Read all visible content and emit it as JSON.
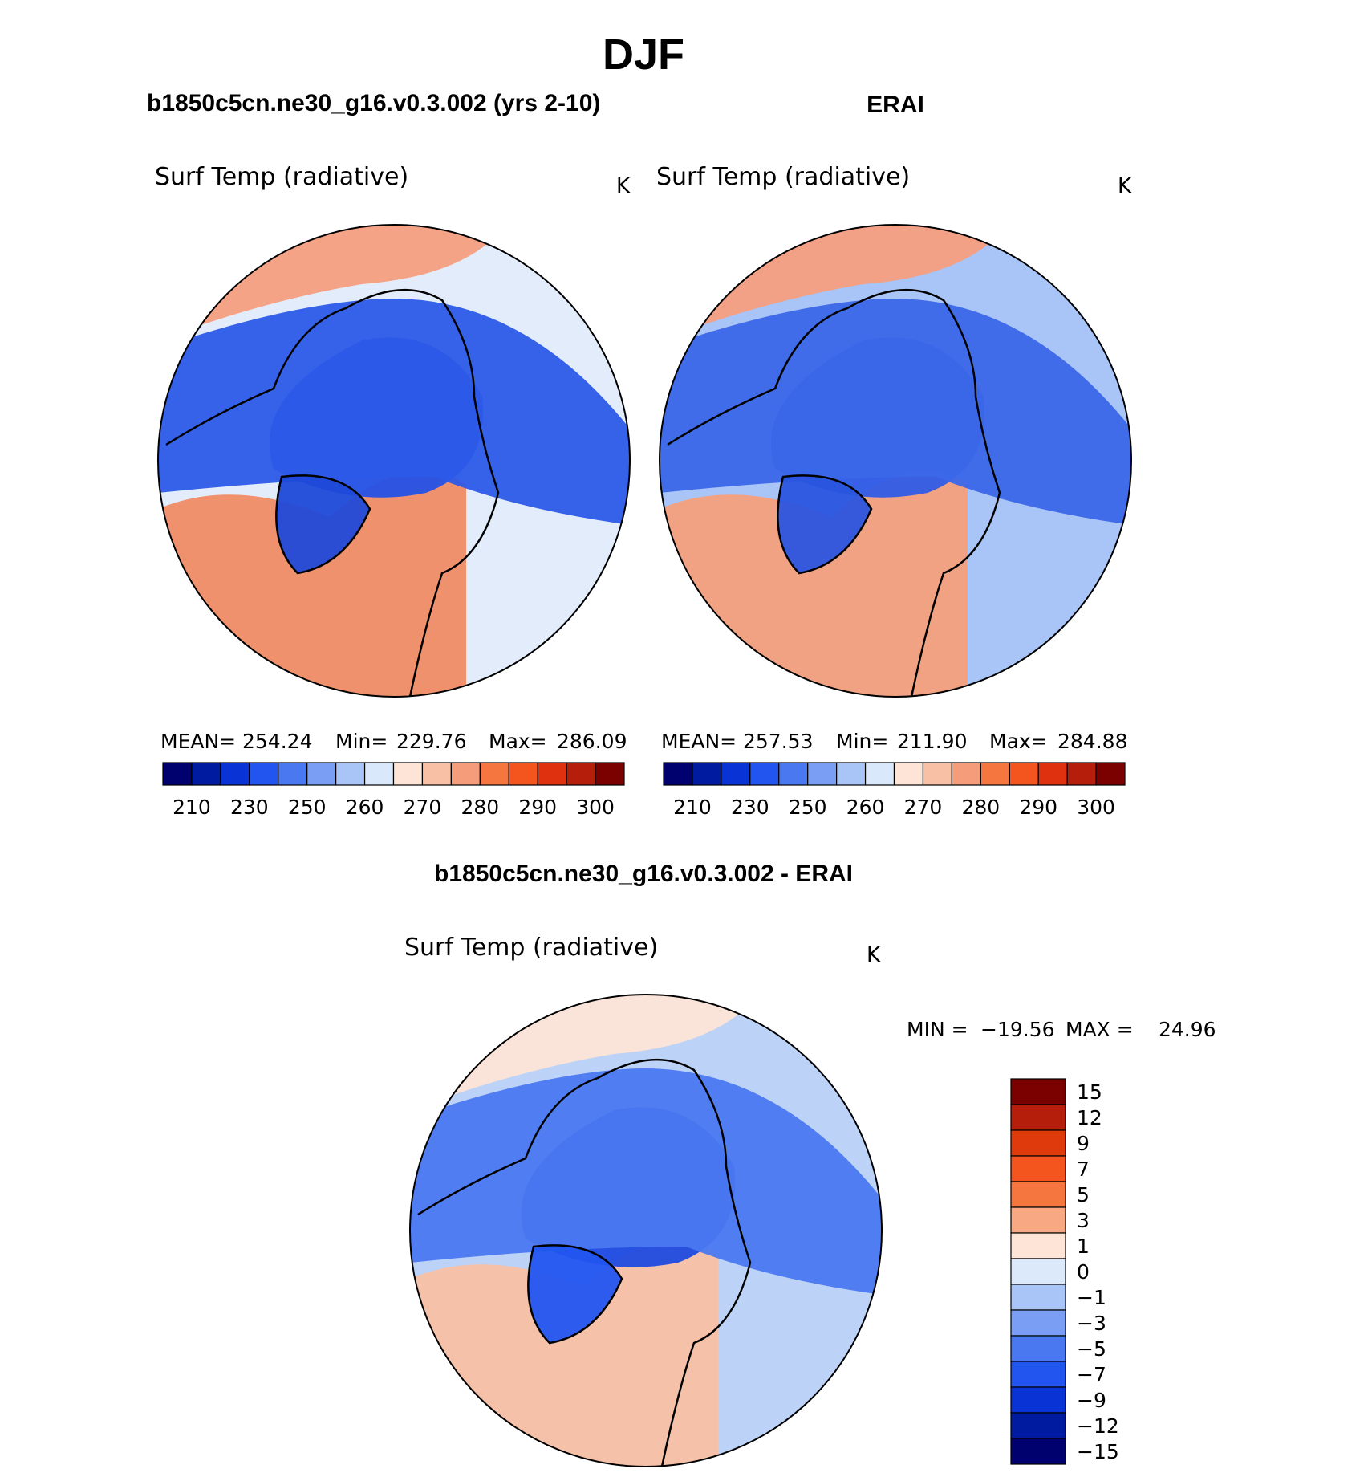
{
  "figure": {
    "season_title": "DJF"
  },
  "chart_data": [
    {
      "type": "heatmap",
      "projection": "north-polar-stereographic",
      "panel_title": "b1850c5cn.ne30_g16.v0.3.002 (yrs 2-10)",
      "variable": "Surf Temp (radiative)",
      "units": "K",
      "stats": {
        "mean_label": "MEAN=",
        "mean": "254.24",
        "min_label": "Min=",
        "min": "229.76",
        "max_label": "Max=",
        "max": "286.09"
      },
      "colorbar": {
        "orientation": "horizontal",
        "tick_labels": [
          "210",
          "230",
          "250",
          "260",
          "270",
          "280",
          "290",
          "300"
        ],
        "colors": [
          "#00006e",
          "#001aa0",
          "#0a33d6",
          "#2255f0",
          "#4a78f0",
          "#7a9ef3",
          "#a9c4f6",
          "#d9e8fb",
          "#fde4d6",
          "#f8c0a4",
          "#f59c7a",
          "#f5773f",
          "#f4541e",
          "#df3010",
          "#b51e0a",
          "#7b0000"
        ]
      },
      "map": {
        "land_color": "#e3ecfa",
        "regions": [
          {
            "name": "warm-atlantic",
            "value": "warm",
            "color": "#f08c66"
          },
          {
            "name": "warm-pacific",
            "value": "warm",
            "color": "#f59f80"
          },
          {
            "name": "cold-arctic",
            "value": "cold",
            "color": "#2451e6"
          },
          {
            "name": "cold-siberia",
            "value": "cold",
            "color": "#2c5ae8"
          },
          {
            "name": "cold-greenland",
            "value": "cold",
            "color": "#1f4ad8"
          }
        ]
      }
    },
    {
      "type": "heatmap",
      "projection": "north-polar-stereographic",
      "panel_title": "ERAI",
      "variable": "Surf Temp (radiative)",
      "units": "K",
      "stats": {
        "mean_label": "MEAN=",
        "mean": "257.53",
        "min_label": "Min=",
        "min": "211.90",
        "max_label": "Max=",
        "max": "284.88"
      },
      "colorbar": {
        "orientation": "horizontal",
        "tick_labels": [
          "210",
          "230",
          "250",
          "260",
          "270",
          "280",
          "290",
          "300"
        ],
        "colors": [
          "#00006e",
          "#001aa0",
          "#0a33d6",
          "#2255f0",
          "#4a78f0",
          "#7a9ef3",
          "#a9c4f6",
          "#d9e8fb",
          "#fde4d6",
          "#f8c0a4",
          "#f59c7a",
          "#f5773f",
          "#f4541e",
          "#df3010",
          "#b51e0a",
          "#7b0000"
        ]
      },
      "map": {
        "land_color": "#a9c4f6",
        "regions": [
          {
            "name": "warm-atlantic",
            "value": "warm",
            "color": "#f4a07c"
          },
          {
            "name": "warm-pacific",
            "value": "warm",
            "color": "#f59f80"
          },
          {
            "name": "cold-arctic",
            "value": "cold",
            "color": "#2f5ce6"
          },
          {
            "name": "cold-siberia",
            "value": "cold",
            "color": "#3b67e8"
          },
          {
            "name": "cold-greenland",
            "value": "cold",
            "color": "#2a55de"
          }
        ]
      }
    },
    {
      "type": "heatmap",
      "projection": "north-polar-stereographic",
      "panel_title": "b1850c5cn.ne30_g16.v0.3.002 - ERAI",
      "variable": "Surf Temp (radiative)",
      "units": "K",
      "stats": {
        "min_label": "MIN =",
        "min": "−19.56",
        "max_label": "MAX =",
        "max": "24.96"
      },
      "colorbar": {
        "orientation": "vertical",
        "tick_labels": [
          "15",
          "12",
          "9",
          "7",
          "5",
          "3",
          "1",
          "0",
          "−1",
          "−3",
          "−5",
          "−7",
          "−9",
          "−12",
          "−15"
        ],
        "colors": [
          "#7b0000",
          "#b51e0a",
          "#df3a0c",
          "#f4541e",
          "#f5773f",
          "#f8a882",
          "#fde4d6",
          "#dbe9fb",
          "#a9c4f6",
          "#7a9ef3",
          "#4a78f0",
          "#2255f0",
          "#0a33d6",
          "#001aa0",
          "#00006e"
        ]
      },
      "map": {
        "land_color": "#bcd3f7",
        "regions": [
          {
            "name": "warm-atlantic",
            "value": "warm",
            "color": "#f8c0a4"
          },
          {
            "name": "warm-pacific",
            "value": "warm",
            "color": "#fde4d6"
          },
          {
            "name": "cold-arctic",
            "value": "cold",
            "color": "#1f4ae0"
          },
          {
            "name": "cold-siberia",
            "value": "cold",
            "color": "#4a78f0"
          },
          {
            "name": "cold-greenland",
            "value": "cold",
            "color": "#2255f0"
          }
        ]
      }
    }
  ]
}
